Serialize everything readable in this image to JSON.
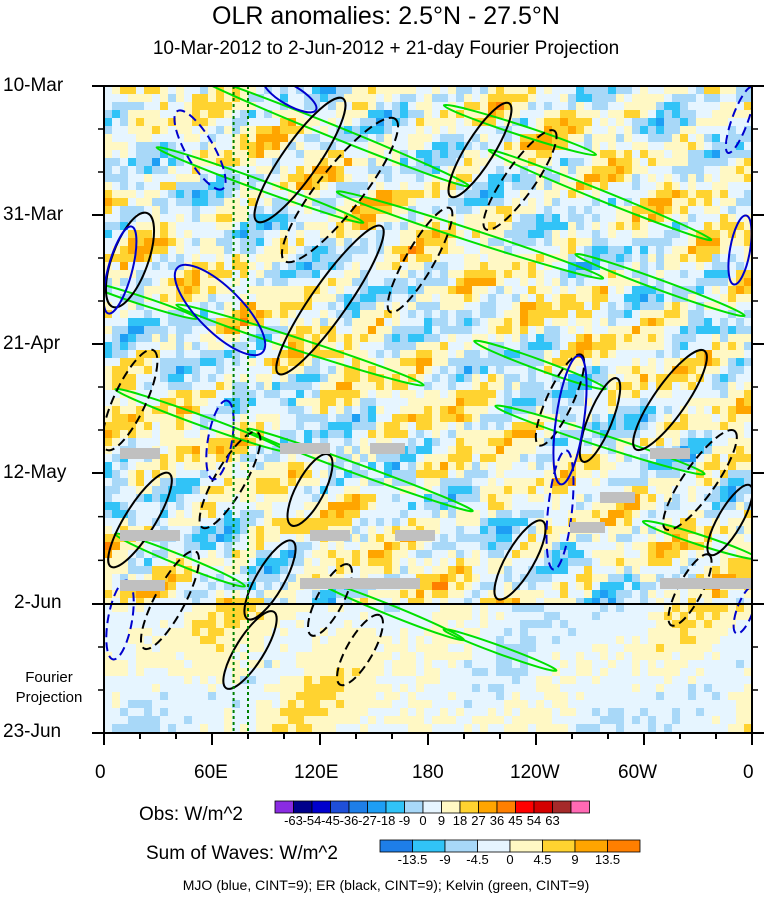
{
  "header": {
    "title": "OLR anomalies: 2.5°N - 27.5°N",
    "subtitle": "10-Mar-2012 to 2-Jun-2012 + 21-day Fourier Projection"
  },
  "axes": {
    "y_ticks": [
      "10-Mar",
      "31-Mar",
      "21-Apr",
      "12-May",
      "2-Jun",
      "23-Jun"
    ],
    "x_ticks": [
      "0",
      "60E",
      "120E",
      "180",
      "120W",
      "60W",
      "0"
    ],
    "projection_label": [
      "Fourier",
      "Projection"
    ]
  },
  "legend_obs": {
    "label": "Obs: W/m^2",
    "ticks": [
      "-63",
      "-54",
      "-45",
      "-36",
      "-27",
      "-18",
      "-9",
      "0",
      "9",
      "18",
      "27",
      "36",
      "45",
      "54",
      "63"
    ],
    "colors": [
      "#8a2be2",
      "#00008b",
      "#0000cd",
      "#1f4fd8",
      "#1e7ee8",
      "#1e9ef4",
      "#31c3f7",
      "#a8d8f8",
      "#e6f5ff",
      "#fff8c4",
      "#ffd330",
      "#ffa500",
      "#ff7f00",
      "#ff0000",
      "#d40000",
      "#a52a2a",
      "#ff69b4"
    ]
  },
  "legend_waves": {
    "label": "Sum of Waves: W/m^2",
    "ticks": [
      "-13.5",
      "-9",
      "-4.5",
      "0",
      "4.5",
      "9",
      "13.5"
    ],
    "colors": [
      "#1e7ee8",
      "#31c3f7",
      "#a8d8f8",
      "#e6f5ff",
      "#fff8c4",
      "#ffd330",
      "#ffa500",
      "#ff7f00"
    ]
  },
  "footer": "MJO (blue, CINT=9); ER (black, CINT=9); Kelvin (green, CINT=9)",
  "colors": {
    "mjo": "#0000cd",
    "er": "#000000",
    "kelvin": "#00e000",
    "missing": "#c0c0c0",
    "marker": "#008000"
  },
  "chart_data": {
    "type": "heatmap",
    "title": "OLR anomalies: 2.5°N - 27.5°N",
    "subtitle": "10-Mar-2012 to 2-Jun-2012 + 21-day Fourier Projection",
    "x_axis": {
      "ticks": [
        "0",
        "60E",
        "120E",
        "180",
        "120W",
        "60W",
        "0"
      ],
      "range": [
        0,
        360
      ]
    },
    "y_axis": {
      "ticks": [
        "10-Mar",
        "31-Mar",
        "21-Apr",
        "12-May",
        "2-Jun",
        "23-Jun"
      ],
      "range": [
        "10-Mar-2012",
        "23-Jun-2012"
      ],
      "reversed": true
    },
    "observed_end": "2-Jun-2012",
    "observed_levels_wm2": [
      -63,
      -54,
      -45,
      -36,
      -27,
      -18,
      -9,
      0,
      9,
      18,
      27,
      36,
      45,
      54,
      63
    ],
    "wave_levels_wm2": [
      -13.5,
      -9,
      -4.5,
      0,
      4.5,
      9,
      13.5
    ],
    "contours": [
      {
        "name": "MJO",
        "color": "blue",
        "cint": 9
      },
      {
        "name": "ER",
        "color": "black",
        "cint": 9
      },
      {
        "name": "Kelvin",
        "color": "green",
        "cint": 9
      }
    ],
    "reference_longitudes": [
      72,
      80
    ]
  }
}
